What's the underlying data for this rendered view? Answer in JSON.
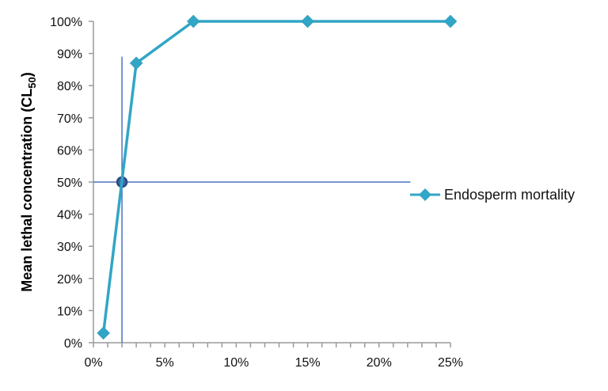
{
  "chart_data": {
    "type": "line",
    "title": "",
    "xlabel": "",
    "ylabel": "Mean lethal concentration (CL",
    "ylabel_subscript": "50",
    "ylabel_close": ")",
    "xlim": [
      0,
      25
    ],
    "ylim": [
      0,
      100
    ],
    "x_ticks": [
      "0%",
      "5%",
      "10%",
      "15%",
      "20%",
      "25%"
    ],
    "y_ticks": [
      "0%",
      "10%",
      "20%",
      "30%",
      "40%",
      "50%",
      "60%",
      "70%",
      "80%",
      "90%",
      "100%"
    ],
    "grid": false,
    "legend_position": "right",
    "series": [
      {
        "name": "Endosperm mortality",
        "color": "#31a6c6",
        "marker": "diamond",
        "x": [
          0.7,
          3,
          7,
          15,
          25
        ],
        "y": [
          3,
          87,
          100,
          100,
          100
        ]
      }
    ],
    "annotations": {
      "color": "#4a73c0",
      "vertical_line": {
        "x": 2,
        "y_range": [
          0,
          89
        ]
      },
      "horizontal_line": {
        "y": 50,
        "x_range": [
          0,
          22.2
        ]
      },
      "marker_point": {
        "x": 2,
        "y": 50,
        "fill": "#4167a8",
        "edge": "#2b4a80"
      }
    }
  }
}
